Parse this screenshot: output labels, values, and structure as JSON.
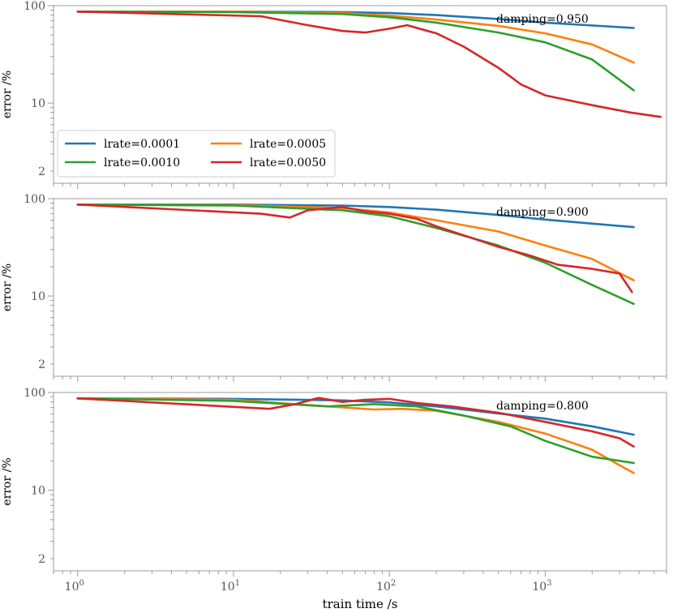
{
  "figure": {
    "xlabel": "train time /s"
  },
  "legend": {
    "entries": [
      {
        "label": "lrate=0.0001",
        "color": "#1f77b4"
      },
      {
        "label": "lrate=0.0005",
        "color": "#ff7f0e"
      },
      {
        "label": "lrate=0.0010",
        "color": "#2ca02c"
      },
      {
        "label": "lrate=0.0050",
        "color": "#d62728"
      }
    ]
  },
  "chart_data": [
    {
      "type": "line",
      "annotation": "damping=0.950",
      "ylabel": "error /%",
      "xscale": "log",
      "yscale": "log",
      "xlim": [
        0.7,
        6000
      ],
      "ylim": [
        1.5,
        100
      ],
      "yticks": [
        2,
        10,
        100
      ],
      "yticklabels": [
        "2",
        "10",
        "100"
      ],
      "xticklabels": [],
      "legend": "lower-left, 2 columns",
      "series": [
        {
          "name": "lrate=0.0001",
          "color": "#1f77b4",
          "x": [
            1,
            10,
            50,
            100,
            200,
            500,
            1000,
            3700
          ],
          "y": [
            87,
            87,
            86,
            84,
            80,
            73,
            67,
            59
          ]
        },
        {
          "name": "lrate=0.0005",
          "color": "#ff7f0e",
          "x": [
            1,
            10,
            50,
            100,
            200,
            500,
            1000,
            2000,
            3700
          ],
          "y": [
            87,
            87,
            84,
            79,
            72,
            62,
            52,
            40,
            26
          ]
        },
        {
          "name": "lrate=0.0010",
          "color": "#2ca02c",
          "x": [
            1,
            10,
            50,
            100,
            200,
            500,
            1000,
            2000,
            3700
          ],
          "y": [
            87,
            86,
            82,
            76,
            67,
            53,
            42,
            28,
            13.5
          ]
        },
        {
          "name": "lrate=0.0050",
          "color": "#d62728",
          "x": [
            1,
            15,
            30,
            50,
            70,
            100,
            130,
            200,
            300,
            500,
            700,
            1000,
            2000,
            3500,
            5500
          ],
          "y": [
            87,
            78,
            63,
            55,
            53,
            58,
            63,
            52,
            38,
            23,
            15.5,
            12,
            9.5,
            8,
            7.2
          ]
        }
      ]
    },
    {
      "type": "line",
      "annotation": "damping=0.900",
      "ylabel": "error /%",
      "xscale": "log",
      "yscale": "log",
      "xlim": [
        0.7,
        6000
      ],
      "ylim": [
        1.5,
        100
      ],
      "yticks": [
        2,
        10,
        100
      ],
      "yticklabels": [
        "2",
        "10",
        "100"
      ],
      "xticklabels": [],
      "series": [
        {
          "name": "lrate=0.0001",
          "color": "#1f77b4",
          "x": [
            1,
            10,
            50,
            100,
            200,
            500,
            1000,
            3700
          ],
          "y": [
            87,
            87,
            85,
            82,
            77,
            68,
            61,
            51
          ]
        },
        {
          "name": "lrate=0.0005",
          "color": "#ff7f0e",
          "x": [
            1,
            10,
            50,
            100,
            200,
            500,
            1000,
            2000,
            3700
          ],
          "y": [
            87,
            86,
            80,
            72,
            60,
            46,
            33,
            24,
            14.5
          ]
        },
        {
          "name": "lrate=0.0010",
          "color": "#2ca02c",
          "x": [
            1,
            10,
            50,
            100,
            200,
            500,
            1000,
            2000,
            3700
          ],
          "y": [
            87,
            85,
            76,
            66,
            50,
            33,
            22,
            13,
            8.3
          ]
        },
        {
          "name": "lrate=0.0050",
          "color": "#d62728",
          "x": [
            1,
            15,
            23,
            30,
            50,
            70,
            100,
            150,
            200,
            300,
            500,
            800,
            1200,
            2000,
            3000,
            3600
          ],
          "y": [
            87,
            70,
            64,
            76,
            82,
            74,
            70,
            62,
            52,
            42,
            32,
            26,
            21,
            19,
            17,
            11
          ]
        }
      ]
    },
    {
      "type": "line",
      "annotation": "damping=0.800",
      "ylabel": "error /%",
      "xlabel": "train time /s",
      "xscale": "log",
      "yscale": "log",
      "xlim": [
        0.7,
        6000
      ],
      "ylim": [
        1.5,
        100
      ],
      "yticks": [
        2,
        10,
        100
      ],
      "yticklabels": [
        "2",
        "10",
        "100"
      ],
      "xticks": [
        1,
        10,
        100,
        1000
      ],
      "xticklabels": [
        "10^0",
        "10^1",
        "10^2",
        "10^3"
      ],
      "series": [
        {
          "name": "lrate=0.0001",
          "color": "#1f77b4",
          "x": [
            1,
            10,
            50,
            100,
            200,
            500,
            1000,
            2000,
            3700
          ],
          "y": [
            87,
            86,
            83,
            79,
            72,
            61,
            54,
            45,
            37
          ]
        },
        {
          "name": "lrate=0.0005",
          "color": "#ff7f0e",
          "x": [
            1,
            10,
            40,
            80,
            120,
            200,
            500,
            1000,
            2000,
            3000,
            3700
          ],
          "y": [
            87,
            84,
            72,
            67,
            68,
            65,
            50,
            38,
            26,
            18,
            15
          ]
        },
        {
          "name": "lrate=0.0010",
          "color": "#2ca02c",
          "x": [
            1,
            10,
            40,
            80,
            150,
            300,
            600,
            1000,
            2000,
            3700
          ],
          "y": [
            87,
            82,
            72,
            76,
            72,
            58,
            45,
            32,
            22,
            19
          ]
        },
        {
          "name": "lrate=0.0050",
          "color": "#d62728",
          "x": [
            1,
            17,
            25,
            35,
            50,
            70,
            100,
            150,
            250,
            500,
            1000,
            2000,
            3000,
            3700
          ],
          "y": [
            87,
            68,
            76,
            88,
            80,
            84,
            86,
            78,
            72,
            62,
            50,
            40,
            34,
            28
          ]
        }
      ]
    }
  ]
}
